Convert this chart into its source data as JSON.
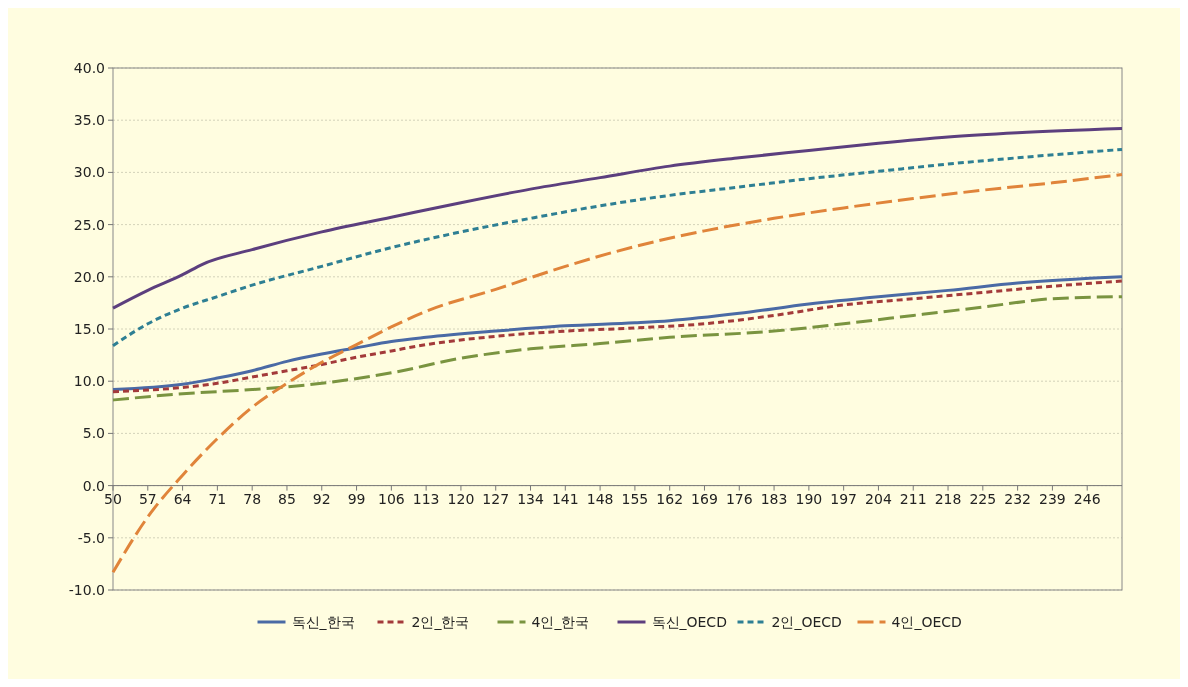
{
  "chart_data": {
    "type": "line",
    "xlim": [
      50,
      253
    ],
    "xticks": [
      50,
      57,
      64,
      71,
      78,
      85,
      92,
      99,
      106,
      113,
      120,
      127,
      134,
      141,
      148,
      155,
      162,
      169,
      176,
      183,
      190,
      197,
      204,
      211,
      218,
      225,
      232,
      239,
      246
    ],
    "ylim": [
      -10,
      40
    ],
    "yticks": [
      {
        "value": -10,
        "label": "-10.0"
      },
      {
        "value": -5,
        "label": "-5.0"
      },
      {
        "value": 0,
        "label": "0.0"
      },
      {
        "value": 5,
        "label": "5.0"
      },
      {
        "value": 10,
        "label": "10.0"
      },
      {
        "value": 15,
        "label": "15.0"
      },
      {
        "value": 20,
        "label": "20.0"
      },
      {
        "value": 25,
        "label": "25.0"
      },
      {
        "value": 30,
        "label": "30.0"
      },
      {
        "value": 35,
        "label": "35.0"
      },
      {
        "value": 40,
        "label": "40.0"
      }
    ],
    "grid": "y",
    "legend": "bottom",
    "marker": "none",
    "series": [
      {
        "name": "독신_한국",
        "color": "#4a6aa5",
        "line_style": "solid",
        "x": [
          50,
          64,
          71,
          78,
          85,
          92,
          99,
          106,
          113,
          127,
          141,
          155,
          162,
          176,
          190,
          204,
          218,
          232,
          253
        ],
        "values": [
          9.2,
          9.7,
          10.3,
          11.0,
          11.9,
          12.6,
          13.2,
          13.8,
          14.2,
          14.8,
          15.3,
          15.6,
          15.8,
          16.5,
          17.4,
          18.1,
          18.7,
          19.4,
          20.0
        ]
      },
      {
        "name": "2인_한국",
        "color": "#a33a3a",
        "line_style": "dashed",
        "x": [
          50,
          64,
          71,
          78,
          85,
          92,
          99,
          106,
          113,
          127,
          141,
          155,
          169,
          183,
          197,
          211,
          225,
          239,
          253
        ],
        "values": [
          9.0,
          9.4,
          9.8,
          10.4,
          11.0,
          11.6,
          12.3,
          12.9,
          13.5,
          14.3,
          14.8,
          15.1,
          15.5,
          16.3,
          17.3,
          17.9,
          18.5,
          19.1,
          19.6
        ]
      },
      {
        "name": "4인_한국",
        "color": "#7a9440",
        "line_style": "dashed",
        "x": [
          50,
          64,
          78,
          92,
          106,
          120,
          134,
          148,
          162,
          183,
          197,
          211,
          225,
          239,
          253
        ],
        "values": [
          8.2,
          8.8,
          9.2,
          9.8,
          10.8,
          12.2,
          13.1,
          13.6,
          14.2,
          14.8,
          15.5,
          16.3,
          17.1,
          17.9,
          18.1
        ]
      },
      {
        "name": "독신_OECD",
        "color": "#5c3f7e",
        "line_style": "solid",
        "x": [
          50,
          57,
          64,
          68,
          78,
          92,
          106,
          120,
          134,
          148,
          162,
          176,
          190,
          204,
          218,
          232,
          253
        ],
        "values": [
          17.0,
          18.7,
          20.2,
          21.2,
          22.6,
          24.3,
          25.7,
          27.1,
          28.4,
          29.5,
          30.6,
          31.4,
          32.1,
          32.8,
          33.4,
          33.8,
          34.2
        ]
      },
      {
        "name": "2인_OECD",
        "color": "#2e7f93",
        "line_style": "dashed",
        "x": [
          50,
          57,
          64,
          71,
          78,
          92,
          106,
          120,
          134,
          148,
          162,
          176,
          190,
          204,
          218,
          232,
          253
        ],
        "values": [
          13.4,
          15.5,
          17.0,
          18.1,
          19.2,
          21.0,
          22.8,
          24.3,
          25.6,
          26.8,
          27.8,
          28.6,
          29.4,
          30.1,
          30.8,
          31.4,
          32.2
        ]
      },
      {
        "name": "4인_OECD",
        "color": "#e0843a",
        "line_style": "dashed",
        "x": [
          50,
          57,
          64,
          71,
          78,
          85,
          92,
          99,
          106,
          113,
          127,
          141,
          155,
          169,
          183,
          197,
          211,
          225,
          239,
          253
        ],
        "values": [
          -8.3,
          -3.0,
          1.0,
          4.5,
          7.5,
          9.8,
          11.8,
          13.5,
          15.2,
          16.7,
          18.8,
          21.0,
          22.9,
          24.4,
          25.6,
          26.6,
          27.5,
          28.3,
          29.0,
          29.8
        ]
      }
    ]
  }
}
